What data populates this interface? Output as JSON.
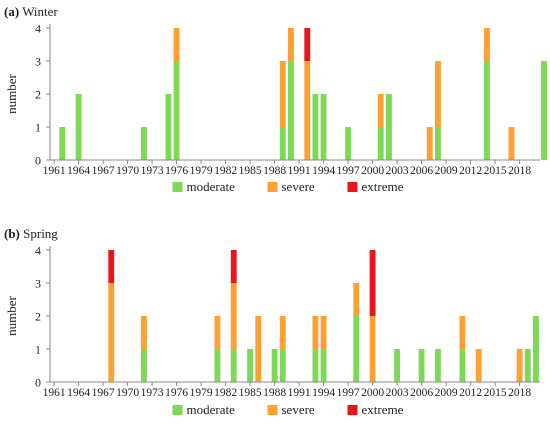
{
  "chart_data": [
    {
      "panel": "a",
      "title_letter": "(a)",
      "title": "Winter",
      "type": "bar",
      "stacked": true,
      "ylabel": "number",
      "ylim": [
        0,
        4
      ],
      "yticks": [
        0,
        1,
        2,
        3,
        4
      ],
      "xlim": [
        1961,
        2021
      ],
      "xticks": [
        1961,
        1964,
        1967,
        1970,
        1973,
        1976,
        1979,
        1982,
        1985,
        1988,
        1991,
        1994,
        1997,
        2000,
        2003,
        2006,
        2009,
        2012,
        2015,
        2018
      ],
      "grid": false,
      "legend_position": "bottom",
      "categories": [
        1962,
        1964,
        1972,
        1975,
        1976,
        1989,
        1990,
        1992,
        1993,
        1994,
        1997,
        2001,
        2002,
        2007,
        2008,
        2014,
        2017,
        2021
      ],
      "series": [
        {
          "name": "moderate",
          "color": "#7ed957",
          "values": [
            1,
            2,
            1,
            2,
            3,
            1,
            3,
            0,
            2,
            2,
            1,
            1,
            2,
            0,
            1,
            3,
            0,
            3
          ]
        },
        {
          "name": "severe",
          "color": "#ffa033",
          "values": [
            0,
            0,
            0,
            0,
            1,
            2,
            1,
            3,
            0,
            0,
            0,
            1,
            0,
            1,
            2,
            1,
            1,
            0
          ]
        },
        {
          "name": "extreme",
          "color": "#e8151b",
          "values": [
            0,
            0,
            0,
            0,
            0,
            0,
            0,
            1,
            0,
            0,
            0,
            0,
            0,
            0,
            0,
            0,
            0,
            0
          ]
        }
      ]
    },
    {
      "panel": "b",
      "title_letter": "(b)",
      "title": "Spring",
      "type": "bar",
      "stacked": true,
      "ylabel": "number",
      "ylim": [
        0,
        4
      ],
      "yticks": [
        0,
        1,
        2,
        3,
        4
      ],
      "xlim": [
        1961,
        2021
      ],
      "xticks": [
        1961,
        1964,
        1967,
        1970,
        1973,
        1976,
        1979,
        1982,
        1985,
        1988,
        1991,
        1994,
        1997,
        2000,
        2003,
        2006,
        2009,
        2012,
        2015,
        2018
      ],
      "grid": false,
      "legend_position": "bottom",
      "categories": [
        1968,
        1972,
        1981,
        1983,
        1985,
        1986,
        1988,
        1989,
        1993,
        1994,
        1998,
        2000,
        2003,
        2006,
        2008,
        2011,
        2013,
        2018,
        2019,
        2020
      ],
      "series": [
        {
          "name": "moderate",
          "color": "#7ed957",
          "values": [
            0,
            1,
            1,
            1,
            1,
            0,
            1,
            1,
            1,
            1,
            2,
            0,
            1,
            1,
            1,
            1,
            0,
            0,
            1,
            2
          ]
        },
        {
          "name": "severe",
          "color": "#ffa033",
          "values": [
            3,
            1,
            1,
            2,
            0,
            2,
            0,
            1,
            1,
            1,
            1,
            2,
            0,
            0,
            0,
            1,
            1,
            1,
            0,
            0
          ]
        },
        {
          "name": "extreme",
          "color": "#e8151b",
          "values": [
            1,
            0,
            0,
            1,
            0,
            0,
            0,
            0,
            0,
            0,
            0,
            2,
            0,
            0,
            0,
            0,
            0,
            0,
            0,
            0
          ]
        }
      ]
    }
  ]
}
